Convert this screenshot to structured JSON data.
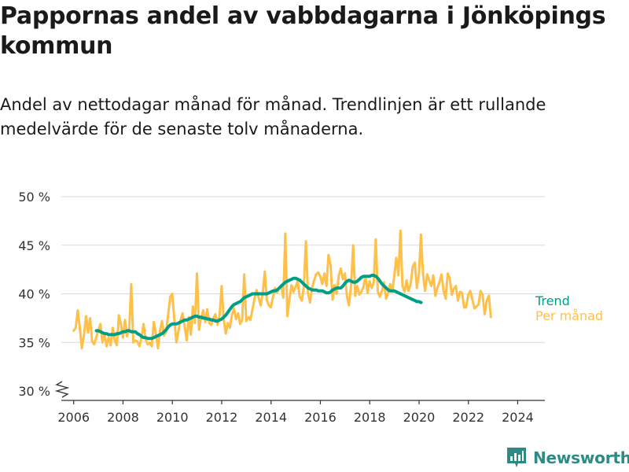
{
  "title": "Pappornas andel av vabbdagarna i Jönköpings kommun",
  "subtitle": "Andel av nettodagar månad för månad. Trendlinjen är ett rullande medelvärde för de senaste tolv månaderna.",
  "brand": {
    "name": "Newsworthy",
    "color": "#2e8a85",
    "icon": "newsworthy-logo-icon"
  },
  "colors": {
    "monthly": "#ffc04a",
    "trend": "#009e86",
    "grid": "#d9d9d9",
    "axis": "#333333"
  },
  "chart_data": {
    "type": "line",
    "title": "Pappornas andel av vabbdagarna i Jönköpings kommun",
    "xlabel": "",
    "ylabel": "",
    "xlim": [
      2005.5,
      2025.1
    ],
    "ylim": [
      30,
      50
    ],
    "y_axis_break": true,
    "x_ticks": [
      2006,
      2008,
      2010,
      2012,
      2014,
      2016,
      2018,
      2020,
      2022,
      2024
    ],
    "y_ticks": [
      30,
      35,
      40,
      45,
      50
    ],
    "y_tick_labels": [
      "30 %",
      "35 %",
      "40 %",
      "45 %",
      "50 %"
    ],
    "grid": "horizontal",
    "legend_placement": "right-end-of-lines",
    "series": [
      {
        "name": "Per månad",
        "start": 2006.0,
        "step": 0.0833,
        "values": [
          36.2,
          36.5,
          38.3,
          36.5,
          34.4,
          35.8,
          37.7,
          36.0,
          37.5,
          35.1,
          34.8,
          35.5,
          36.3,
          36.9,
          35.0,
          35.8,
          34.6,
          35.5,
          34.7,
          36.5,
          35.2,
          34.7,
          37.8,
          36.9,
          35.5,
          37.3,
          35.6,
          36.3,
          41.0,
          35.0,
          35.2,
          35.1,
          34.6,
          35.4,
          36.9,
          35.3,
          34.8,
          35.0,
          34.6,
          37.1,
          35.9,
          34.4,
          36.2,
          37.2,
          35.7,
          36.1,
          37.9,
          39.7,
          40.0,
          37.3,
          35.0,
          36.2,
          37.3,
          38.0,
          36.7,
          35.2,
          37.6,
          35.8,
          38.7,
          37.0,
          42.1,
          36.3,
          37.5,
          38.3,
          37.1,
          38.4,
          37.0,
          36.8,
          37.5,
          37.9,
          36.8,
          37.8,
          40.8,
          37.4,
          35.9,
          37.0,
          36.5,
          37.8,
          38.5,
          37.4,
          38.0,
          36.9,
          37.3,
          42.0,
          37.2,
          37.6,
          37.3,
          38.4,
          39.5,
          40.4,
          39.6,
          38.8,
          40.1,
          42.3,
          39.3,
          38.8,
          38.6,
          39.7,
          40.6,
          40.1,
          40.6,
          40.9,
          39.6,
          46.2,
          37.7,
          39.4,
          40.9,
          40.2,
          40.7,
          41.3,
          39.7,
          39.3,
          40.7,
          45.4,
          40.1,
          39.1,
          40.6,
          41.4,
          42.0,
          42.2,
          41.8,
          41.0,
          42.1,
          40.8,
          44.0,
          43.0,
          39.4,
          40.9,
          40.0,
          41.9,
          42.6,
          41.5,
          42.1,
          39.7,
          38.8,
          40.9,
          45.0,
          39.8,
          40.8,
          39.9,
          40.2,
          40.7,
          41.8,
          40.1,
          41.3,
          40.6,
          41.2,
          45.6,
          40.2,
          39.7,
          40.3,
          41.2,
          39.5,
          40.1,
          41.0,
          40.2,
          41.8,
          43.7,
          41.9,
          46.5,
          40.8,
          40.2,
          41.4,
          40.3,
          41.0,
          42.8,
          43.2,
          40.6,
          42.0,
          46.1,
          42.1,
          40.3,
          42.0,
          41.4,
          40.8,
          41.9,
          39.8,
          40.6,
          41.2,
          42.0,
          40.3,
          39.5,
          42.1,
          41.6,
          39.9,
          40.5,
          40.8,
          39.3,
          40.2,
          40.1,
          38.6,
          38.6,
          39.9,
          40.3,
          39.4,
          38.5,
          38.7,
          38.9,
          40.3,
          39.9,
          37.9,
          39.3,
          39.8,
          37.6
        ]
      },
      {
        "name": "Trend",
        "start": 2006.92,
        "step": 0.0833,
        "values": [
          36.2,
          36.2,
          36.1,
          36.0,
          35.9,
          35.9,
          35.8,
          35.8,
          35.8,
          35.8,
          35.9,
          35.9,
          36.0,
          36.1,
          36.1,
          36.2,
          36.2,
          36.1,
          36.1,
          36.1,
          35.9,
          35.8,
          35.6,
          35.5,
          35.5,
          35.4,
          35.4,
          35.4,
          35.5,
          35.6,
          35.7,
          35.8,
          35.9,
          36.1,
          36.3,
          36.6,
          36.8,
          36.9,
          36.9,
          36.9,
          37.0,
          37.1,
          37.2,
          37.3,
          37.3,
          37.4,
          37.5,
          37.6,
          37.7,
          37.7,
          37.6,
          37.6,
          37.5,
          37.5,
          37.4,
          37.4,
          37.3,
          37.3,
          37.2,
          37.2,
          37.3,
          37.4,
          37.6,
          37.8,
          38.1,
          38.4,
          38.7,
          38.9,
          39.0,
          39.1,
          39.2,
          39.4,
          39.6,
          39.7,
          39.8,
          39.9,
          40.0,
          40.0,
          40.0,
          40.0,
          40.0,
          40.0,
          40.0,
          40.0,
          40.1,
          40.2,
          40.3,
          40.3,
          40.4,
          40.6,
          40.8,
          41.0,
          41.2,
          41.3,
          41.4,
          41.5,
          41.6,
          41.6,
          41.5,
          41.4,
          41.2,
          41.0,
          40.8,
          40.6,
          40.5,
          40.4,
          40.4,
          40.4,
          40.3,
          40.3,
          40.3,
          40.2,
          40.1,
          40.1,
          40.2,
          40.4,
          40.5,
          40.6,
          40.6,
          40.6,
          40.8,
          41.1,
          41.3,
          41.4,
          41.3,
          41.2,
          41.2,
          41.3,
          41.5,
          41.7,
          41.8,
          41.8,
          41.8,
          41.8,
          41.9,
          41.9,
          41.8,
          41.6,
          41.3,
          41.0,
          40.8,
          40.6,
          40.4,
          40.3,
          40.3,
          40.3,
          40.2,
          40.1,
          40.0,
          39.9,
          39.8,
          39.7,
          39.6,
          39.5,
          39.4,
          39.3,
          39.2,
          39.2,
          39.1
        ]
      }
    ]
  }
}
